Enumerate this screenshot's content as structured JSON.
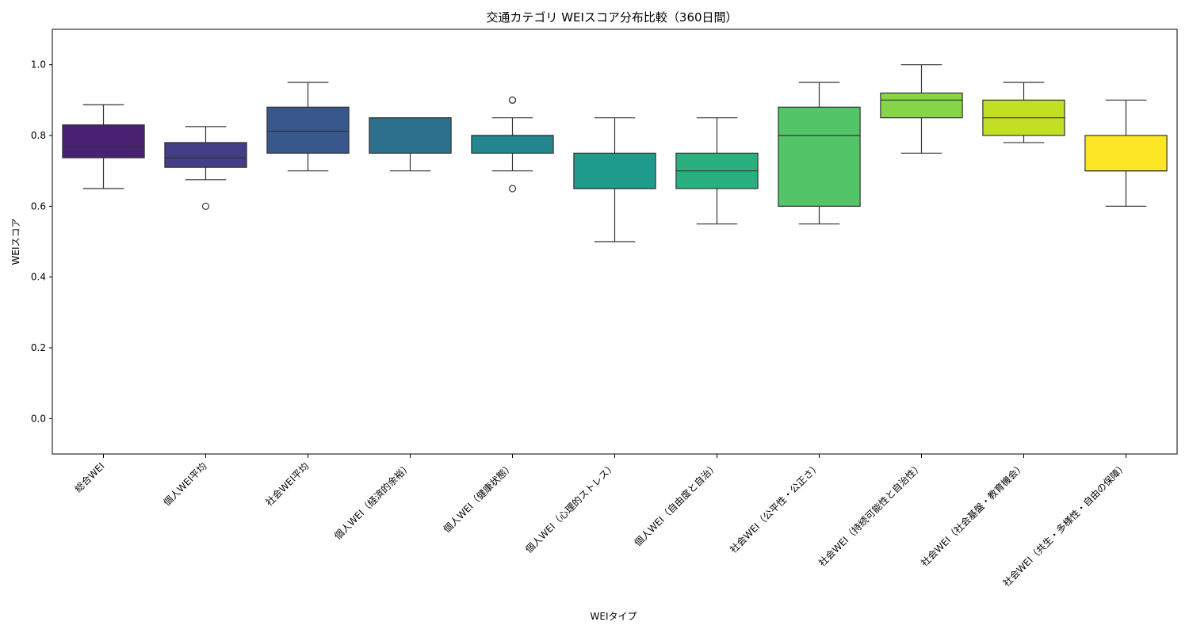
{
  "chart_data": {
    "type": "boxplot",
    "title": "交通カテゴリ WEIスコア分布比較（360日間）",
    "xlabel": "WEIタイプ",
    "ylabel": "WEIスコア",
    "ylim": [
      -0.1,
      1.1
    ],
    "yticks": [
      "0.0",
      "0.2",
      "0.4",
      "0.6",
      "0.8",
      "1.0"
    ],
    "grid": false,
    "legend": "none",
    "categories": [
      {
        "label": "総合WEI",
        "whisker_low": 0.65,
        "q1": 0.737,
        "median": 0.768,
        "q3": 0.83,
        "whisker_high": 0.887,
        "outliers": [],
        "color": "#482173"
      },
      {
        "label": "個人WEI平均",
        "whisker_low": 0.675,
        "q1": 0.71,
        "median": 0.737,
        "q3": 0.78,
        "whisker_high": 0.825,
        "outliers": [
          0.6
        ],
        "color": "#433e85"
      },
      {
        "label": "社会WEI平均",
        "whisker_low": 0.7,
        "q1": 0.75,
        "median": 0.812,
        "q3": 0.88,
        "whisker_high": 0.95,
        "outliers": [],
        "color": "#38588c"
      },
      {
        "label": "個人WEI（経済的余裕）",
        "whisker_low": 0.7,
        "q1": 0.75,
        "median": 0.85,
        "q3": 0.85,
        "whisker_high": 0.85,
        "outliers": [],
        "color": "#2d708e"
      },
      {
        "label": "個人WEI（健康状態）",
        "whisker_low": 0.7,
        "q1": 0.75,
        "median": 0.8,
        "q3": 0.8,
        "whisker_high": 0.85,
        "outliers": [
          0.65,
          0.9,
          0.9
        ],
        "color": "#25858e"
      },
      {
        "label": "個人WEI（心理的ストレス）",
        "whisker_low": 0.5,
        "q1": 0.65,
        "median": 0.65,
        "q3": 0.75,
        "whisker_high": 0.85,
        "outliers": [],
        "color": "#1e9b8a"
      },
      {
        "label": "個人WEI（自由度と自治）",
        "whisker_low": 0.55,
        "q1": 0.65,
        "median": 0.7,
        "q3": 0.75,
        "whisker_high": 0.85,
        "outliers": [],
        "color": "#2ab07f"
      },
      {
        "label": "社会WEI（公平性・公正さ）",
        "whisker_low": 0.55,
        "q1": 0.6,
        "median": 0.8,
        "q3": 0.88,
        "whisker_high": 0.95,
        "outliers": [],
        "color": "#52c569"
      },
      {
        "label": "社会WEI（持続可能性と自治性）",
        "whisker_low": 0.75,
        "q1": 0.85,
        "median": 0.9,
        "q3": 0.92,
        "whisker_high": 1.0,
        "outliers": [],
        "color": "#86d549"
      },
      {
        "label": "社会WEI（社会基盤・教育機会）",
        "whisker_low": 0.78,
        "q1": 0.8,
        "median": 0.85,
        "q3": 0.9,
        "whisker_high": 0.95,
        "outliers": [],
        "color": "#c2df23"
      },
      {
        "label": "社会WEI（共生・多様性・自由の保障）",
        "whisker_low": 0.6,
        "q1": 0.7,
        "median": 0.7,
        "q3": 0.8,
        "whisker_high": 0.9,
        "outliers": [],
        "color": "#fde725"
      }
    ]
  }
}
